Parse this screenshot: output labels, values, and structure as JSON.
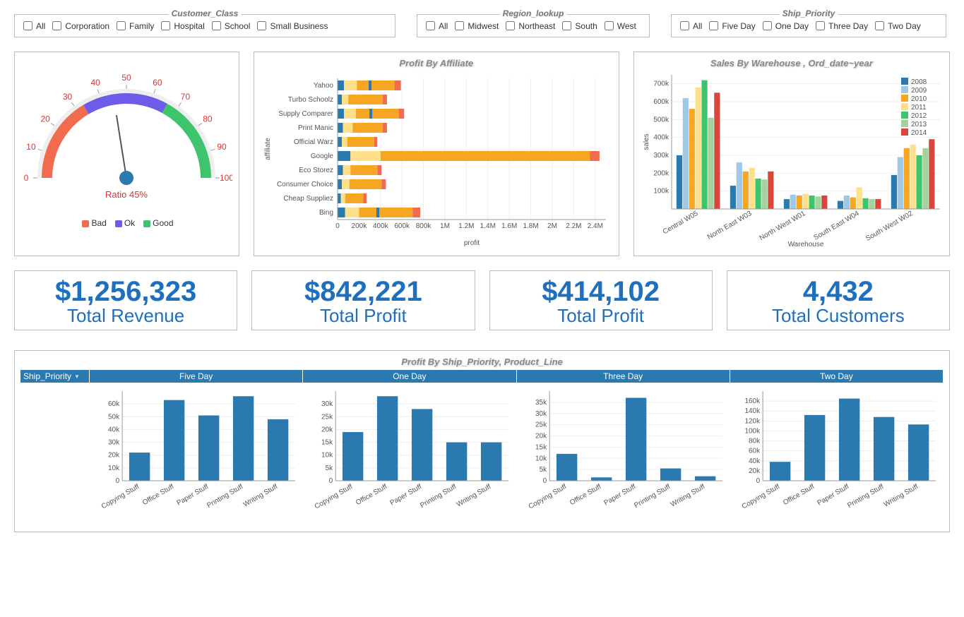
{
  "filters": {
    "customer_class": {
      "title": "Customer_Class",
      "options": [
        "All",
        "Corporation",
        "Family",
        "Hospital",
        "School",
        "Small Business"
      ]
    },
    "region": {
      "title": "Region_lookup",
      "options": [
        "All",
        "Midwest",
        "Northeast",
        "South",
        "West"
      ]
    },
    "ship_priority": {
      "title": "Ship_Priority",
      "options": [
        "All",
        "Five Day",
        "One Day",
        "Three Day",
        "Two Day"
      ]
    }
  },
  "gauge": {
    "ratio_label": "Ratio 45%",
    "value": 45,
    "ticks": [
      0,
      10,
      20,
      30,
      40,
      50,
      60,
      70,
      80,
      90,
      100
    ],
    "segments": [
      {
        "from": 0,
        "to": 33,
        "color": "#f36b4f"
      },
      {
        "from": 33,
        "to": 66,
        "color": "#6c5ce7"
      },
      {
        "from": 66,
        "to": 100,
        "color": "#3ec46d"
      }
    ],
    "tick_color": "#d33",
    "legend": [
      {
        "label": "Bad",
        "color": "#f36b4f"
      },
      {
        "label": "Ok",
        "color": "#6c5ce7"
      },
      {
        "label": "Good",
        "color": "#3ec46d"
      }
    ]
  },
  "affiliate": {
    "title": "Profit By Affiliate",
    "ylabel": "affiliate",
    "xlabel": "profit",
    "xmax": 2500000,
    "xticks": [
      0,
      200000,
      400000,
      600000,
      800000,
      1000000,
      1200000,
      1400000,
      1600000,
      1800000,
      2000000,
      2200000,
      2400000
    ],
    "xtick_labels": [
      "0",
      "200k",
      "400k",
      "600k",
      "800k",
      "1M",
      "1.2M",
      "1.4M",
      "1.6M",
      "1.8M",
      "2M",
      "2.2M",
      "2.4M"
    ],
    "stack_colors": [
      "#2a7ab0",
      "#ffe08a",
      "#f6a623",
      "#f36b4f"
    ],
    "series": [
      {
        "name": "Yahoo",
        "segs": [
          60000,
          120000,
          350000,
          60000
        ],
        "marker": true
      },
      {
        "name": "Turbo Schoolz",
        "segs": [
          40000,
          60000,
          320000,
          40000
        ]
      },
      {
        "name": "Supply Comparer",
        "segs": [
          60000,
          110000,
          400000,
          50000
        ],
        "marker": true
      },
      {
        "name": "Print Manic",
        "segs": [
          50000,
          90000,
          280000,
          40000
        ]
      },
      {
        "name": "Official Warz",
        "segs": [
          40000,
          50000,
          250000,
          30000
        ]
      },
      {
        "name": "Google",
        "segs": [
          120000,
          280000,
          1950000,
          90000
        ]
      },
      {
        "name": "Eco Storez",
        "segs": [
          50000,
          70000,
          250000,
          40000
        ]
      },
      {
        "name": "Consumer Choice",
        "segs": [
          40000,
          70000,
          300000,
          40000
        ]
      },
      {
        "name": "Cheap Suppliez",
        "segs": [
          30000,
          40000,
          170000,
          30000
        ]
      },
      {
        "name": "Bing",
        "segs": [
          70000,
          130000,
          500000,
          70000
        ],
        "marker": true
      }
    ]
  },
  "warehouse": {
    "title": "Sales By Warehouse , Ord_date~year",
    "ylabel": "sales",
    "xlabel": "Warehouse",
    "ymax": 750000,
    "yticks": [
      100000,
      200000,
      300000,
      400000,
      500000,
      600000,
      700000
    ],
    "ytick_labels": [
      "100k",
      "200k",
      "300k",
      "400k",
      "500k",
      "600k",
      "700k"
    ],
    "years": [
      "2008",
      "2009",
      "2010",
      "2011",
      "2012",
      "2013",
      "2014"
    ],
    "colors": [
      "#2a7ab0",
      "#9ec8e8",
      "#f6a623",
      "#ffe08a",
      "#3ec46d",
      "#a2d39b",
      "#d9463d"
    ],
    "groups": [
      {
        "name": "Central W05",
        "values": [
          300000,
          620000,
          560000,
          680000,
          720000,
          510000,
          650000
        ]
      },
      {
        "name": "North East W03",
        "values": [
          130000,
          260000,
          210000,
          230000,
          170000,
          165000,
          210000
        ]
      },
      {
        "name": "North West W01",
        "values": [
          55000,
          80000,
          75000,
          85000,
          75000,
          70000,
          75000
        ]
      },
      {
        "name": "South East W04",
        "values": [
          45000,
          75000,
          65000,
          120000,
          60000,
          55000,
          55000
        ]
      },
      {
        "name": "South West W02",
        "values": [
          190000,
          290000,
          340000,
          360000,
          300000,
          340000,
          390000
        ]
      }
    ]
  },
  "kpis": [
    {
      "value": "$1,256,323",
      "label": "Total Revenue"
    },
    {
      "value": "$842,221",
      "label": "Total Profit"
    },
    {
      "value": "$414,102",
      "label": "Total Profit"
    },
    {
      "value": "4,432",
      "label": "Total Customers"
    }
  ],
  "bottom": {
    "title": "Profit By Ship_Priority, Product_Line",
    "row_label": "Ship_Priority",
    "categories": [
      "Copying Stuff",
      "Office Stuff",
      "Paper Stuff",
      "Printing Stuff",
      "Writing Stuff"
    ],
    "color": "#2a7ab0",
    "panels": [
      {
        "name": "Five Day",
        "ymax": 70000,
        "yticks": [
          10000,
          20000,
          30000,
          40000,
          50000,
          60000
        ],
        "ytick_labels": [
          "10k",
          "20k",
          "30k",
          "40k",
          "50k",
          "60k"
        ],
        "values": [
          22000,
          63000,
          51000,
          66000,
          48000
        ]
      },
      {
        "name": "One Day",
        "ymax": 35000,
        "yticks": [
          5000,
          10000,
          15000,
          20000,
          25000,
          30000
        ],
        "ytick_labels": [
          "5k",
          "10k",
          "15k",
          "20k",
          "25k",
          "30k"
        ],
        "values": [
          19000,
          33000,
          28000,
          15000,
          15000
        ]
      },
      {
        "name": "Three Day",
        "ymax": 40000,
        "yticks": [
          5000,
          10000,
          15000,
          20000,
          25000,
          30000,
          35000
        ],
        "ytick_labels": [
          "5k",
          "10k",
          "15k",
          "20k",
          "25k",
          "30k",
          "35k"
        ],
        "values": [
          12000,
          1500,
          37000,
          5500,
          2000
        ]
      },
      {
        "name": "Two Day",
        "ymax": 180000,
        "yticks": [
          20000,
          40000,
          60000,
          80000,
          100000,
          120000,
          140000,
          160000
        ],
        "ytick_labels": [
          "20k",
          "40k",
          "60k",
          "80k",
          "100k",
          "120k",
          "140k",
          "160k"
        ],
        "values": [
          38000,
          132000,
          165000,
          128000,
          113000
        ]
      }
    ]
  }
}
